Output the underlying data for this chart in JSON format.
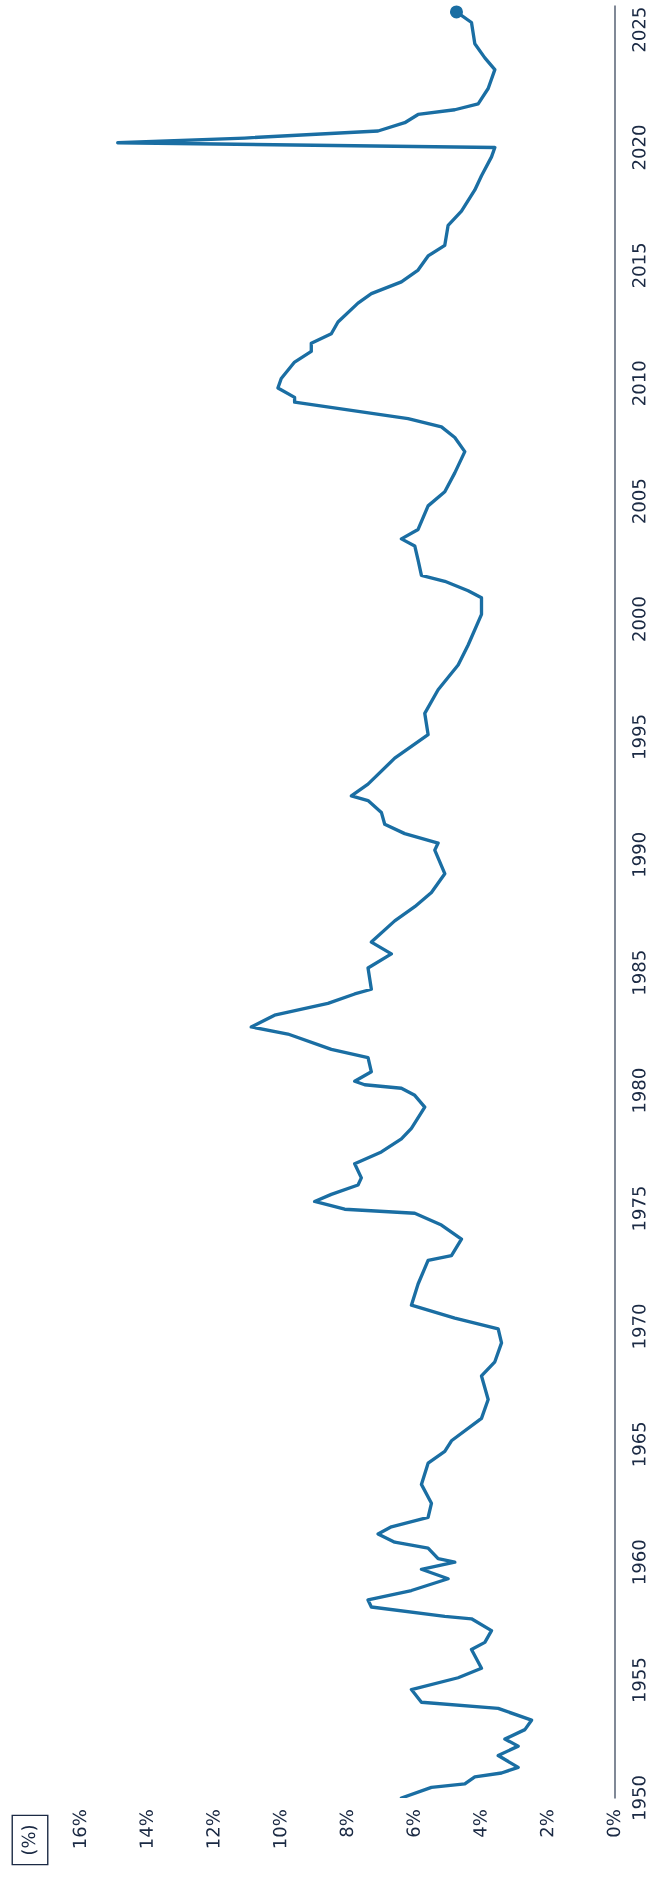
{
  "chart_data": {
    "type": "line",
    "annotations": [
      "(%)"
    ],
    "series": [
      {
        "color": "#1a6ea3",
        "values": [
          1950.0,
          1950.45,
          1950.6,
          1950.9,
          1951.06,
          1951.3,
          1951.8,
          1952.2,
          1952.5,
          1952.9,
          1953.3,
          1953.8,
          1954.06,
          1954.6,
          1955.1,
          1955.5,
          1956.3,
          1956.6,
          1957.1,
          1957.6,
          1957.7,
          1958.1,
          1958.4,
          1958.8,
          1959.3,
          1959.7,
          1960.0,
          1960.15,
          1960.6,
          1960.85,
          1961.2,
          1961.5,
          1961.9,
          1962.5,
          1963.3,
          1964.2,
          1964.7,
          1965.15,
          1966.1,
          1966.9,
          1967.9,
          1968.5,
          1969.3,
          1969.9,
          1970.35,
          1970.9,
          1971.8,
          1972.8,
          1973.0,
          1973.7,
          1974.3,
          1974.8,
          1974.97,
          1975.3,
          1975.6,
          1976.0,
          1976.3,
          1976.9,
          1977.4,
          1977.95,
          1978.4,
          1979.3,
          1979.8,
          1980.1,
          1980.25,
          1980.4,
          1980.8,
          1981.4,
          1981.75,
          1982.4,
          1982.7,
          1983.2,
          1983.7,
          1984.1,
          1984.3,
          1985.2,
          1985.8,
          1986.3,
          1987.2,
          1987.8,
          1988.4,
          1989.2,
          1990.2,
          1990.5,
          1990.9,
          1991.3,
          1991.8,
          1992.3,
          1992.5,
          1993.0,
          1994.1,
          1995.1,
          1996.0,
          1997.0,
          1998.05,
          1998.9,
          2000.2,
          2000.9,
          2001.2,
          2001.6,
          2001.85,
          2002.5,
          2003.1,
          2003.4,
          2003.8,
          2004.8,
          2005.4,
          2006.2,
          2007.1,
          2007.7,
          2008.15,
          2008.5,
          2009.2,
          2009.4,
          2009.8,
          2010.2,
          2010.9,
          2011.35,
          2011.7,
          2012.1,
          2012.6,
          2013.4,
          2013.8,
          2014.3,
          2014.8,
          2015.4,
          2015.85,
          2016.7,
          2017.3,
          2018.2,
          2018.8,
          2019.6,
          2020.0,
          2020.2,
          2020.4,
          2020.7,
          2021.05,
          2021.4,
          2021.6,
          2021.85,
          2022.5,
          2023.3,
          2023.8,
          2024.4,
          2025.3,
          2025.75
        ],
        "x": [
          6.4,
          5.5,
          4.5,
          4.2,
          3.4,
          2.9,
          3.5,
          2.9,
          3.3,
          2.7,
          2.5,
          3.5,
          5.8,
          6.1,
          4.7,
          4.0,
          4.3,
          3.9,
          3.7,
          4.3,
          5.1,
          7.3,
          7.4,
          6.1,
          5.0,
          5.8,
          4.8,
          5.3,
          5.6,
          6.6,
          7.1,
          6.7,
          5.6,
          5.5,
          5.8,
          5.6,
          5.1,
          4.9,
          4.0,
          3.8,
          4.0,
          3.6,
          3.4,
          3.5,
          4.8,
          6.1,
          5.9,
          5.6,
          4.9,
          4.6,
          5.2,
          6.0,
          8.1,
          9.0,
          8.5,
          7.7,
          7.6,
          7.8,
          7.0,
          6.4,
          6.1,
          5.7,
          6.0,
          6.4,
          7.5,
          7.8,
          7.3,
          7.4,
          8.5,
          9.8,
          10.9,
          10.2,
          8.6,
          7.8,
          7.3,
          7.4,
          6.7,
          7.3,
          6.6,
          6.0,
          5.5,
          5.1,
          5.4,
          5.3,
          6.3,
          6.9,
          7.0,
          7.4,
          7.9,
          7.4,
          6.6,
          5.6,
          5.7,
          5.3,
          4.7,
          4.4,
          4.0,
          4.0,
          4.4,
          5.1,
          5.8,
          5.9,
          6.0,
          6.4,
          5.9,
          5.6,
          5.1,
          4.8,
          4.5,
          4.8,
          5.2,
          6.2,
          9.6,
          9.6,
          10.1,
          10.0,
          9.6,
          9.1,
          9.1,
          8.5,
          8.3,
          7.7,
          7.3,
          6.4,
          5.9,
          5.6,
          5.1,
          5.0,
          4.6,
          4.2,
          4.0,
          3.7,
          3.6,
          14.9,
          11.1,
          7.1,
          6.3,
          5.9,
          4.8,
          4.1,
          3.8,
          3.6,
          3.9,
          4.2,
          4.3,
          4.75
        ]
      },
      {
        "type": "scatter",
        "color": "#1a6ea3",
        "marker": "circle",
        "x": [
          4.75
        ],
        "values": [
          2025.75
        ]
      }
    ],
    "ylim": [
      1950,
      2026
    ],
    "yticks": [
      1950,
      1955,
      1960,
      1965,
      1970,
      1975,
      1980,
      1985,
      1990,
      1995,
      2000,
      2005,
      2010,
      2015,
      2020,
      2025
    ],
    "xlim": [
      16,
      0
    ],
    "xticks": [
      {
        "value": 0,
        "label": "0%"
      },
      {
        "value": 2,
        "label": "2%"
      },
      {
        "value": 4,
        "label": "4%"
      },
      {
        "value": 6,
        "label": "6%"
      },
      {
        "value": 8,
        "label": "8%"
      },
      {
        "value": 10,
        "label": "10%"
      },
      {
        "value": 12,
        "label": "12%"
      },
      {
        "value": 14,
        "label": "14%"
      },
      {
        "value": 16,
        "label": "16%"
      }
    ],
    "grid": false
  }
}
